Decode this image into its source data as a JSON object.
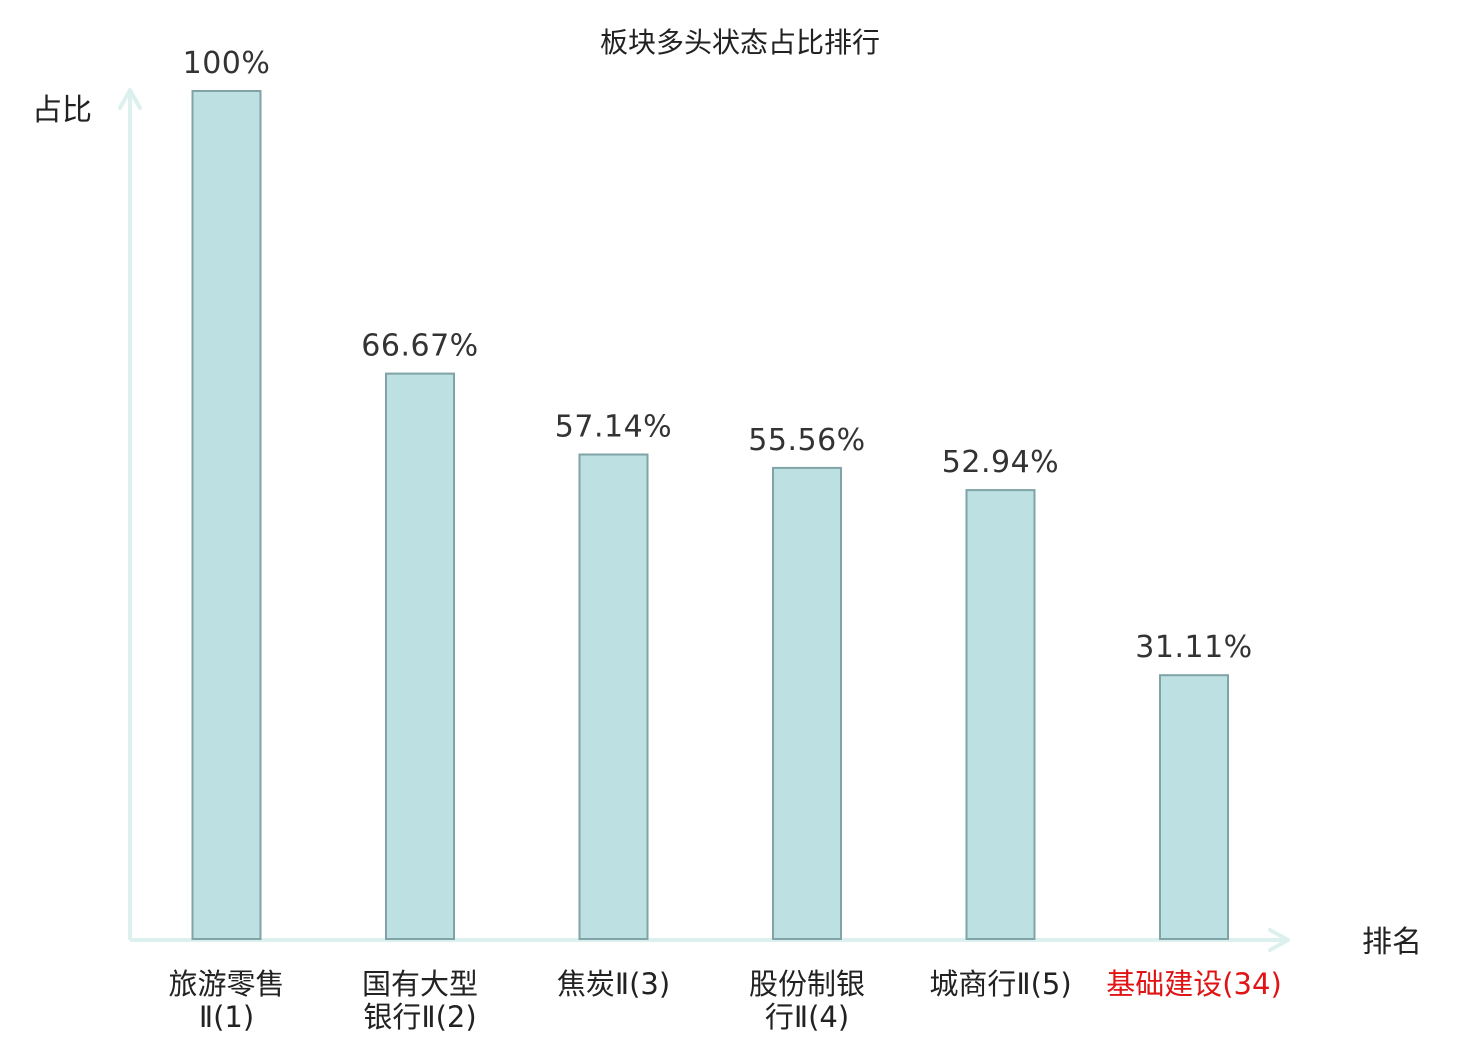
{
  "chart_data": {
    "type": "bar",
    "title": "板块多头状态占比排行",
    "xlabel": "排名",
    "ylabel": "占比",
    "categories": [
      {
        "lines": [
          "旅游零售",
          "Ⅱ(1)"
        ],
        "highlight": false
      },
      {
        "lines": [
          "国有大型",
          "银行Ⅱ(2)"
        ],
        "highlight": false
      },
      {
        "lines": [
          "焦炭Ⅱ(3)"
        ],
        "highlight": false
      },
      {
        "lines": [
          "股份制银",
          "行Ⅱ(4)"
        ],
        "highlight": false
      },
      {
        "lines": [
          "城商行Ⅱ(5)"
        ],
        "highlight": false
      },
      {
        "lines": [
          "基础建设(34)"
        ],
        "highlight": true
      }
    ],
    "values": [
      100,
      66.67,
      57.14,
      55.56,
      52.94,
      31.11
    ],
    "value_labels": [
      "100%",
      "66.67%",
      "57.14%",
      "55.56%",
      "52.94%",
      "31.11%"
    ],
    "ylim": [
      0,
      100
    ],
    "grid": false,
    "colors": {
      "bar_fill": "#bde0e3",
      "bar_stroke": "#7fa3a6",
      "axis": "#dcf0ee",
      "highlight": "#e01414"
    }
  }
}
